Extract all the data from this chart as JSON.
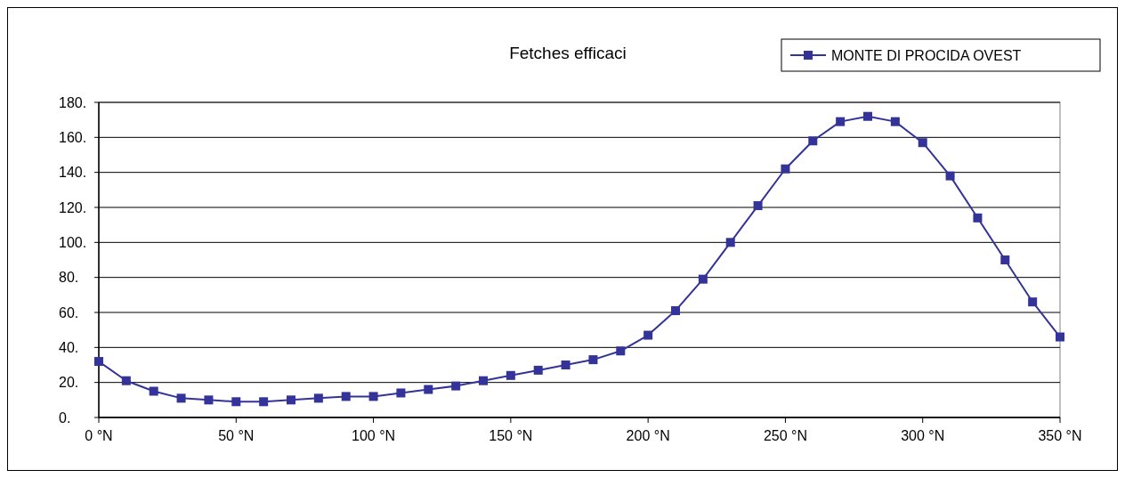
{
  "chart_data": {
    "type": "line",
    "title": "Fetches efficaci",
    "x": [
      0,
      10,
      20,
      30,
      40,
      50,
      60,
      70,
      80,
      90,
      100,
      110,
      120,
      130,
      140,
      150,
      160,
      170,
      180,
      190,
      200,
      210,
      220,
      230,
      240,
      250,
      260,
      270,
      280,
      290,
      300,
      310,
      320,
      330,
      340,
      350
    ],
    "series": [
      {
        "name": "MONTE DI PROCIDA OVEST",
        "color": "#333399",
        "values": [
          32,
          21,
          15,
          11,
          10,
          9,
          9,
          10,
          11,
          12,
          12,
          14,
          16,
          18,
          21,
          24,
          27,
          30,
          33,
          38,
          47,
          61,
          79,
          100,
          121,
          142,
          158,
          169,
          172,
          169,
          157,
          138,
          114,
          90,
          66,
          46
        ]
      }
    ],
    "xlim": [
      0,
      350
    ],
    "xticks": [
      {
        "value": 0,
        "label": "0 °N"
      },
      {
        "value": 50,
        "label": "50 °N"
      },
      {
        "value": 100,
        "label": "100 °N"
      },
      {
        "value": 150,
        "label": "150 °N"
      },
      {
        "value": 200,
        "label": "200 °N"
      },
      {
        "value": 250,
        "label": "250 °N"
      },
      {
        "value": 300,
        "label": "300 °N"
      },
      {
        "value": 350,
        "label": "350 °N"
      }
    ],
    "ylim": [
      0,
      180
    ],
    "yticks": [
      {
        "value": 0,
        "label": "0."
      },
      {
        "value": 20,
        "label": "20."
      },
      {
        "value": 40,
        "label": "40."
      },
      {
        "value": 60,
        "label": "60."
      },
      {
        "value": 80,
        "label": "80."
      },
      {
        "value": 100,
        "label": "100."
      },
      {
        "value": 120,
        "label": "120."
      },
      {
        "value": 140,
        "label": "140."
      },
      {
        "value": 160,
        "label": "160."
      },
      {
        "value": 180,
        "label": "180."
      }
    ],
    "grid": "y",
    "legend": "top right",
    "marker": "square",
    "line_style": "solid"
  }
}
